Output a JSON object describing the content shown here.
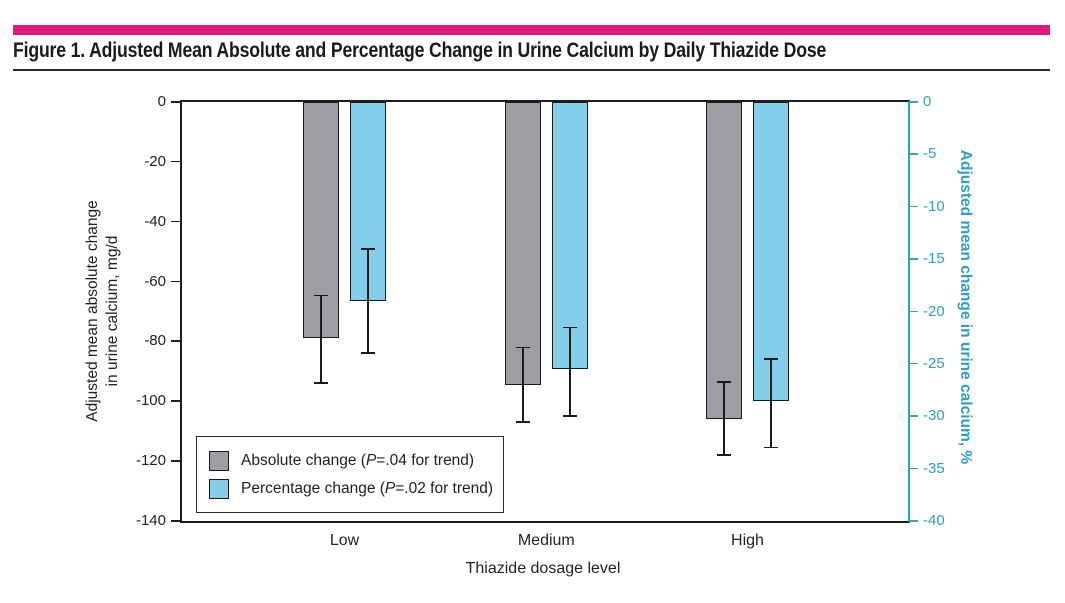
{
  "header": {
    "title": "Figure 1. Adjusted Mean Absolute and Percentage Change in Urine Calcium by Daily Thiazide Dose",
    "accent_color": "#E0197D"
  },
  "chart_data": {
    "type": "bar",
    "categories": [
      "Low",
      "Medium",
      "High"
    ],
    "xlabel": "Thiazide dosage level",
    "left_axis": {
      "label_line1": "Adjusted mean absolute change",
      "label_line2": "in urine calcium, mg/d",
      "ticks": [
        0,
        -20,
        -40,
        -60,
        -80,
        -100,
        -120,
        -140
      ],
      "range": [
        0,
        -140
      ],
      "color": "#231F20"
    },
    "right_axis": {
      "label": "Adjusted mean change in urine calcium, %",
      "ticks": [
        0,
        -5,
        -10,
        -15,
        -20,
        -25,
        -30,
        -35,
        -40
      ],
      "range": [
        0,
        -40
      ],
      "color": "#2F9FC6"
    },
    "series": [
      {
        "name": "Absolute change",
        "axis": "left",
        "color": "#9C9EA1",
        "values": [
          -79,
          -94.5,
          -106
        ],
        "ci_high": [
          -64.5,
          -82,
          -93.5
        ],
        "ci_low": [
          -94,
          -107,
          -118
        ],
        "legend": {
          "prefix": "Absolute change (",
          "p": "P",
          "suffix": "=.04 for trend)"
        }
      },
      {
        "name": "Percentage change",
        "axis": "right",
        "color": "#84CEEC",
        "values": [
          -19,
          -25.5,
          -28.5
        ],
        "ci_high": [
          -14,
          -21.5,
          -24.5
        ],
        "ci_low": [
          -24,
          -30,
          -33
        ],
        "legend": {
          "prefix": "Percentage change (",
          "p": "P",
          "suffix": "=.02 for trend)"
        }
      }
    ],
    "grid": false,
    "legend_position": "inside-bottom-left"
  }
}
